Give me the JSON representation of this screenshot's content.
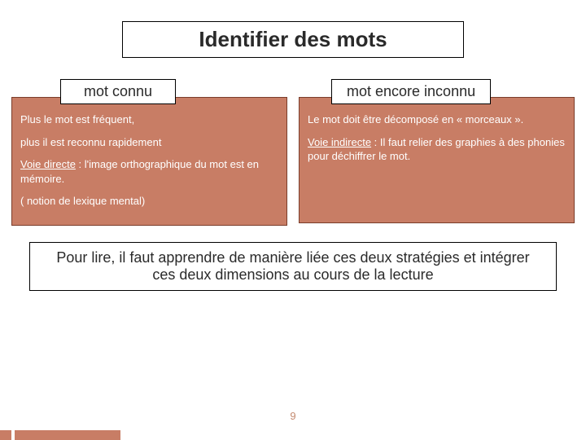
{
  "colors": {
    "panel_bg": "#c87d65",
    "panel_border": "#7a3d2a",
    "text_dark": "#2a2a2a",
    "text_light": "#ffffff",
    "pagenum": "#c48a6f",
    "box_border": "#000000",
    "background": "#ffffff"
  },
  "typography": {
    "title_fontsize": 26,
    "subheader_fontsize": 18,
    "body_fontsize": 13,
    "conclusion_fontsize": 18,
    "pagenum_fontsize": 13,
    "font_family": "Verdana"
  },
  "title": "Identifier des mots",
  "columns": {
    "left": {
      "header": "mot connu",
      "lines": [
        "Plus le mot est fréquent,",
        "plus il est reconnu rapidement",
        "",
        "( notion de lexique mental)"
      ],
      "voie_label": "Voie directe",
      "voie_text": " : l'image orthographique du mot est en mémoire."
    },
    "right": {
      "header": "mot encore inconnu",
      "lines": [
        "Le mot doit être décomposé en « morceaux »."
      ],
      "voie_label": "Voie indirecte",
      "voie_text": " : Il faut relier des graphies à des phonies pour déchiffrer le mot."
    }
  },
  "conclusion": "Pour lire, il faut apprendre de manière liée ces deux stratégies et intégrer ces deux dimensions au cours de la lecture",
  "page_number": "9"
}
